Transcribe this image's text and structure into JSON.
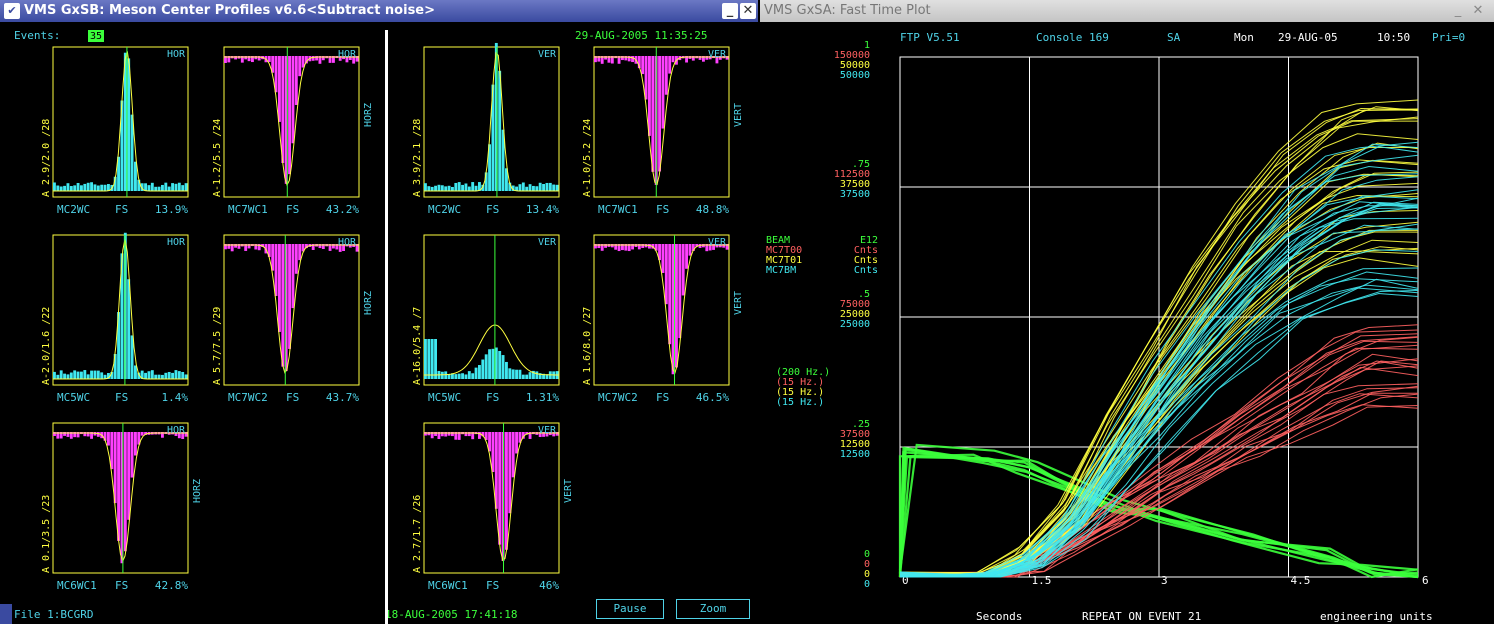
{
  "left_window": {
    "title": "VMS GxSB: Meson Center Profiles v6.6<Subtract noise>",
    "events_label": "Events:",
    "events_value": "35",
    "datetime_top": "29-AUG-2005 11:35:25",
    "file_label": "File 1:BCGRD",
    "datetime_bottom": "18-AUG-2005 17:41:18",
    "pause_label": "Pause",
    "zoom_label": "Zoom",
    "minimize_glyph": "_",
    "close_glyph": "✕",
    "menu_glyph": "✔",
    "panels": [
      {
        "id": "p1",
        "tag": "HOR",
        "side": "",
        "left": "A 2.9/2.0 /28",
        "name": "MC2WC",
        "fs": "FS",
        "pct": "13.9%",
        "kind": "peak"
      },
      {
        "id": "p2",
        "tag": "HOR",
        "side": "HORZ",
        "left": "A-1.2/5.5 /24",
        "name": "MC7WC1",
        "fs": "FS",
        "pct": "43.2%",
        "kind": "dip"
      },
      {
        "id": "p3",
        "tag": "VER",
        "side": "",
        "left": "A 3.9/2.1 /28",
        "name": "MC2WC",
        "fs": "FS",
        "pct": "13.4%",
        "kind": "peak"
      },
      {
        "id": "p4",
        "tag": "VER",
        "side": "VERT",
        "left": "A-1.0/5.2 /24",
        "name": "MC7WC1",
        "fs": "FS",
        "pct": "48.8%",
        "kind": "dip"
      },
      {
        "id": "p5",
        "tag": "HOR",
        "side": "",
        "left": "A-2.0/1.6 /22",
        "name": "MC5WC",
        "fs": "FS",
        "pct": "1.4%",
        "kind": "peak"
      },
      {
        "id": "p6",
        "tag": "HOR",
        "side": "HORZ",
        "left": "A 5.7/7.5 /29",
        "name": "MC7WC2",
        "fs": "FS",
        "pct": "43.7%",
        "kind": "dip"
      },
      {
        "id": "p7",
        "tag": "VER",
        "side": "",
        "left": "A-16.0/5.4 /7",
        "name": "MC5WC",
        "fs": "FS",
        "pct": "1.31%",
        "kind": "wide"
      },
      {
        "id": "p8",
        "tag": "VER",
        "side": "VERT",
        "left": "A 1.6/8.0 /27",
        "name": "MC7WC2",
        "fs": "FS",
        "pct": "46.5%",
        "kind": "dip"
      },
      {
        "id": "p9",
        "tag": "HOR",
        "side": "HORZ",
        "left": "A 0.1/3.5 /23",
        "name": "MC6WC1",
        "fs": "FS",
        "pct": "42.8%",
        "kind": "dip"
      },
      {
        "id": "p10",
        "tag": "VER",
        "side": "VERT",
        "left": "A 2.7/1.7 /26",
        "name": "MC6WC1",
        "fs": "FS",
        "pct": "46%",
        "kind": "dip"
      }
    ]
  },
  "right_window": {
    "title": "VMS GxSA: Fast Time Plot",
    "minimize_glyph": "_",
    "close_glyph": "✕",
    "header": {
      "version": "FTP V5.51",
      "console": "Console 169",
      "sa": "SA",
      "day": "Mon",
      "date": "29-AUG-05",
      "time": "10:50",
      "pri": "Pri=0"
    },
    "scale_groups": [
      {
        "vals": [
          "1",
          "150000",
          "50000",
          "50000"
        ]
      },
      {
        "vals": [
          ".75",
          "112500",
          "37500",
          "37500"
        ]
      },
      {
        "vals": [
          ".5",
          "75000",
          "25000",
          "25000"
        ]
      },
      {
        "vals": [
          ".25",
          "37500",
          "12500",
          "12500"
        ]
      },
      {
        "vals": [
          "0",
          "0",
          "0",
          "0"
        ]
      }
    ],
    "legend": [
      {
        "name": "BEAM",
        "unit": "E12"
      },
      {
        "name": "MC7T00",
        "unit": "Cnts"
      },
      {
        "name": "MC7T01",
        "unit": "Cnts"
      },
      {
        "name": "MC7BM",
        "unit": "Cnts"
      }
    ],
    "rates": [
      "(200  Hz.)",
      "(15   Hz.)",
      "(15   Hz.)",
      "(15   Hz.)"
    ],
    "series_colors": [
      "#3bff3b",
      "#ff6060",
      "#ffff40",
      "#40e8f0"
    ],
    "x_ticks": [
      "0",
      "1.5",
      "3",
      "4.5",
      "6"
    ],
    "footer": {
      "seconds": "Seconds",
      "repeat": "REPEAT ON EVENT 21",
      "units": "engineering units"
    }
  },
  "chart_data": {
    "type": "line",
    "x_label": "Seconds",
    "xlim": [
      0,
      6
    ],
    "ylim": [
      0,
      1
    ],
    "grid": true,
    "series": [
      {
        "name": "BEAM",
        "color": "#3bff3b",
        "x": [
          0,
          0.1,
          1.0,
          1.5,
          2.5,
          3.0,
          4.0,
          5.0,
          5.5,
          6.0
        ],
        "y": [
          0,
          0.24,
          0.23,
          0.21,
          0.14,
          0.12,
          0.08,
          0.04,
          0.01,
          0.0
        ]
      },
      {
        "name": "MC7T00",
        "color": "#ff6060",
        "x": [
          0,
          1.2,
          1.5,
          2.0,
          2.5,
          3.0,
          3.5,
          4.0,
          4.5,
          5.0,
          5.4,
          6.0
        ],
        "y": [
          0,
          0.0,
          0.02,
          0.07,
          0.12,
          0.17,
          0.22,
          0.27,
          0.32,
          0.37,
          0.4,
          0.4
        ]
      },
      {
        "name": "MC7T01",
        "color": "#ffff40",
        "x": [
          0,
          1.0,
          1.5,
          2.0,
          2.5,
          3.0,
          3.5,
          4.0,
          4.5,
          5.0,
          5.4,
          6.0
        ],
        "y": [
          0,
          0.0,
          0.04,
          0.12,
          0.25,
          0.37,
          0.48,
          0.58,
          0.66,
          0.72,
          0.74,
          0.74
        ]
      },
      {
        "name": "MC7BM",
        "color": "#40e8f0",
        "x": [
          0,
          1.0,
          1.5,
          2.0,
          2.5,
          3.0,
          3.5,
          4.0,
          4.5,
          5.0,
          5.4,
          6.0
        ],
        "y": [
          0,
          0.0,
          0.03,
          0.1,
          0.22,
          0.33,
          0.43,
          0.52,
          0.6,
          0.65,
          0.67,
          0.67
        ]
      }
    ]
  }
}
